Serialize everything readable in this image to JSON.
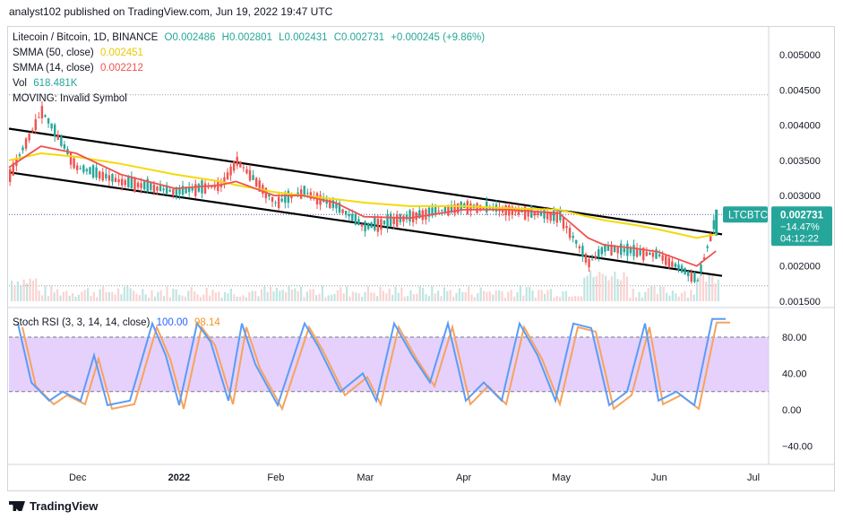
{
  "header": {
    "publisher": "analyst102 published on TradingView.com, Jun 19, 2022 19:47 UTC"
  },
  "legend": {
    "symbol": "Litecoin / Bitcoin, 1D, BINANCE",
    "ohlc": {
      "o": "O0.002486",
      "h": "H0.002801",
      "l": "L0.002431",
      "c": "C0.002731",
      "chg": "+0.000245 (+9.86%)"
    },
    "smma50": {
      "label": "SMMA (50, close)",
      "value": "0.002451"
    },
    "smma14": {
      "label": "SMMA (14, close)",
      "value": "0.002212"
    },
    "vol": {
      "label": "Vol",
      "value": "618.481K"
    },
    "moving": {
      "label": "MOVING: Invalid Symbol"
    }
  },
  "stoch": {
    "label": "Stoch RSI (3, 3, 14, 14, close)",
    "k": "100.00",
    "d": "98.14"
  },
  "price_axis": [
    "0.005000",
    "0.004500",
    "0.004000",
    "0.003500",
    "0.003000",
    "0.002000",
    "0.001500"
  ],
  "stoch_axis": [
    "80.00",
    "40.00",
    "0.00",
    "−40.00"
  ],
  "x_axis": [
    "Dec",
    "2022",
    "Feb",
    "Mar",
    "Apr",
    "May",
    "Jun",
    "Jul"
  ],
  "tags": {
    "symbol": "LTCBTC",
    "price": "0.002731",
    "pct": "−14.47%",
    "countdown": "04:12:22"
  },
  "footer": {
    "brand": "TradingView"
  },
  "colors": {
    "up": "#26a69a",
    "down": "#ef5350",
    "smma50": "#f5d90a",
    "smma14": "#ef5350",
    "stoch_k": "#5b9cf6",
    "stoch_d": "#f7a35c",
    "band": "#e1c9fb"
  },
  "chart_data": {
    "type": "line",
    "title": "Litecoin / Bitcoin, 1D, BINANCE",
    "x": [
      "2021-11-10",
      "2021-11-20",
      "2021-12-01",
      "2021-12-15",
      "2022-01-01",
      "2022-01-15",
      "2022-01-20",
      "2022-02-01",
      "2022-02-10",
      "2022-02-20",
      "2022-03-01",
      "2022-03-15",
      "2022-04-01",
      "2022-04-15",
      "2022-05-01",
      "2022-05-10",
      "2022-05-15",
      "2022-05-25",
      "2022-06-01",
      "2022-06-13",
      "2022-06-19"
    ],
    "series": [
      {
        "name": "LTCBTC close",
        "values": [
          0.0033,
          0.0042,
          0.0034,
          0.0032,
          0.00305,
          0.00315,
          0.0035,
          0.0029,
          0.00305,
          0.00285,
          0.00255,
          0.0027,
          0.00285,
          0.0028,
          0.0027,
          0.00205,
          0.00225,
          0.0022,
          0.00215,
          0.0018,
          0.002731
        ]
      },
      {
        "name": "SMMA (50, close)",
        "values": [
          0.0035,
          0.0036,
          0.00355,
          0.00345,
          0.0033,
          0.0032,
          0.00315,
          0.00305,
          0.003,
          0.00295,
          0.0029,
          0.00285,
          0.00285,
          0.00282,
          0.0028,
          0.0027,
          0.00265,
          0.00258,
          0.00252,
          0.0024,
          0.002451
        ]
      },
      {
        "name": "SMMA (14, close)",
        "values": [
          0.0034,
          0.0037,
          0.0036,
          0.0033,
          0.0031,
          0.00315,
          0.0032,
          0.003,
          0.003,
          0.0029,
          0.0027,
          0.00268,
          0.0028,
          0.0028,
          0.00275,
          0.0024,
          0.0023,
          0.00225,
          0.0022,
          0.002,
          0.002212
        ]
      }
    ],
    "stoch_rsi": {
      "k_last": 100.0,
      "d_last": 98.14,
      "ylim": [
        -50,
        100
      ]
    },
    "ylim": [
      0.0014,
      0.0053
    ]
  }
}
